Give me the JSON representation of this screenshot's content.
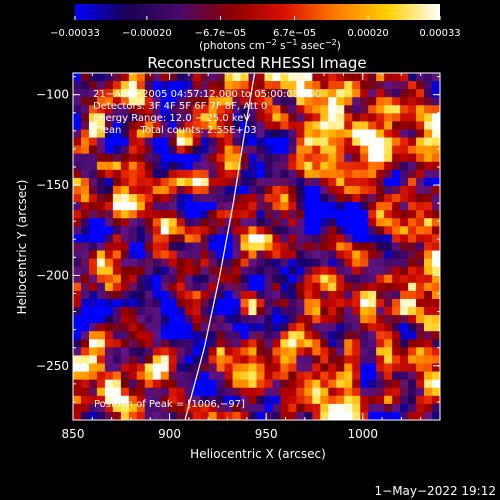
{
  "chart_data": {
    "type": "heatmap",
    "title": "Reconstructed RHESSI Image",
    "xlabel": "Heliocentric X (arcsec)",
    "ylabel": "Heliocentric Y (arcsec)",
    "xlim": [
      850,
      1040
    ],
    "ylim": [
      -280,
      -88
    ],
    "x_ticks": [
      {
        "value": 850,
        "label": "850"
      },
      {
        "value": 900,
        "label": "900"
      },
      {
        "value": 950,
        "label": "950"
      },
      {
        "value": 1000,
        "label": "1000"
      }
    ],
    "y_ticks": [
      {
        "value": -100,
        "label": "−100"
      },
      {
        "value": -150,
        "label": "−150"
      },
      {
        "value": -200,
        "label": "−200"
      },
      {
        "value": -250,
        "label": "−250"
      }
    ],
    "colorbar": {
      "range": [
        -0.00033,
        0.00033
      ],
      "ticks": [
        {
          "value": -0.00033,
          "label": "−0.00033"
        },
        {
          "value": -0.0002,
          "label": "−0.00020"
        },
        {
          "value": -6.7e-05,
          "label": "−6.7e−05"
        },
        {
          "value": 6.7e-05,
          "label": "6.7e−05"
        },
        {
          "value": 0.0002,
          "label": "0.00020"
        },
        {
          "value": 0.00033,
          "label": "0.00033"
        }
      ],
      "unit_parts": [
        "(photons cm",
        "−2",
        " s",
        "−1",
        " asec",
        "−2",
        ")"
      ],
      "colors": [
        "#0000ff",
        "#1a0055",
        "#4a0a6a",
        "#8a0000",
        "#d81000",
        "#ff7a00",
        "#ffd000",
        "#ffffff"
      ]
    },
    "annotations": [
      "21−Aug−2005 04:57:12.000 to 05:00:08.000",
      "Detectors: 3F 4F 5F 6F 7F 8F, Att 0",
      "Energy Range: 12.0 − 25.0 keV",
      "Clean      Total counts: 2.55E+03"
    ],
    "peak_text": "Position of Peak = [1006,−97]",
    "limb_points": [
      [
        908,
        -280
      ],
      [
        918,
        -240
      ],
      [
        926,
        -200
      ],
      [
        933,
        -160
      ],
      [
        939,
        -120
      ],
      [
        944,
        -88
      ]
    ],
    "grid": false
  },
  "footer": {
    "date": "1−May−2022 19:12"
  }
}
